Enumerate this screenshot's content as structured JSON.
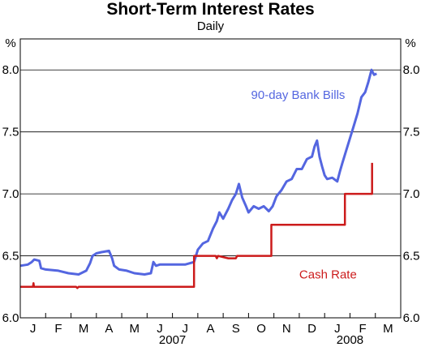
{
  "chart_data": {
    "type": "line",
    "title": "Short-Term Interest Rates",
    "subtitle": "Daily",
    "y_unit_left": "%",
    "y_unit_right": "%",
    "ylim": [
      6.0,
      8.25
    ],
    "y_ticks": [
      "6.0",
      "6.5",
      "7.0",
      "7.5",
      "8.0"
    ],
    "xlim": [
      0,
      15
    ],
    "x_month_labels": [
      "J",
      "F",
      "M",
      "A",
      "M",
      "J",
      "J",
      "A",
      "S",
      "O",
      "N",
      "D",
      "J",
      "F",
      "M"
    ],
    "x_year_labels": [
      {
        "label": "2007",
        "x": 6.0
      },
      {
        "label": "2008",
        "x": 13.0
      }
    ],
    "grid": true,
    "colors": {
      "bank_bills": "#5466e0",
      "cash_rate": "#cc1b1b",
      "grid": "#000000"
    },
    "series": [
      {
        "name": "90-day Bank Bills",
        "label_pos": [
          9.1,
          7.8
        ],
        "points": [
          [
            0.0,
            6.42
          ],
          [
            0.3,
            6.43
          ],
          [
            0.45,
            6.45
          ],
          [
            0.55,
            6.47
          ],
          [
            0.75,
            6.46
          ],
          [
            0.82,
            6.4
          ],
          [
            1.0,
            6.39
          ],
          [
            1.5,
            6.38
          ],
          [
            1.9,
            6.36
          ],
          [
            2.3,
            6.35
          ],
          [
            2.6,
            6.38
          ],
          [
            2.75,
            6.44
          ],
          [
            2.85,
            6.5
          ],
          [
            3.0,
            6.52
          ],
          [
            3.2,
            6.53
          ],
          [
            3.5,
            6.54
          ],
          [
            3.62,
            6.48
          ],
          [
            3.7,
            6.42
          ],
          [
            3.9,
            6.39
          ],
          [
            4.2,
            6.38
          ],
          [
            4.5,
            6.36
          ],
          [
            4.9,
            6.35
          ],
          [
            5.15,
            6.36
          ],
          [
            5.25,
            6.45
          ],
          [
            5.35,
            6.42
          ],
          [
            5.5,
            6.43
          ],
          [
            6.0,
            6.43
          ],
          [
            6.5,
            6.43
          ],
          [
            6.85,
            6.45
          ],
          [
            7.0,
            6.55
          ],
          [
            7.2,
            6.6
          ],
          [
            7.4,
            6.62
          ],
          [
            7.6,
            6.72
          ],
          [
            7.75,
            6.78
          ],
          [
            7.85,
            6.85
          ],
          [
            8.0,
            6.8
          ],
          [
            8.2,
            6.88
          ],
          [
            8.35,
            6.95
          ],
          [
            8.5,
            7.0
          ],
          [
            8.62,
            7.08
          ],
          [
            8.75,
            6.97
          ],
          [
            8.9,
            6.9
          ],
          [
            9.0,
            6.85
          ],
          [
            9.2,
            6.9
          ],
          [
            9.4,
            6.88
          ],
          [
            9.6,
            6.9
          ],
          [
            9.8,
            6.86
          ],
          [
            9.95,
            6.9
          ],
          [
            10.1,
            6.98
          ],
          [
            10.3,
            7.03
          ],
          [
            10.5,
            7.1
          ],
          [
            10.7,
            7.12
          ],
          [
            10.9,
            7.2
          ],
          [
            11.1,
            7.2
          ],
          [
            11.3,
            7.28
          ],
          [
            11.5,
            7.3
          ],
          [
            11.6,
            7.38
          ],
          [
            11.7,
            7.43
          ],
          [
            11.8,
            7.3
          ],
          [
            11.9,
            7.22
          ],
          [
            12.0,
            7.15
          ],
          [
            12.1,
            7.12
          ],
          [
            12.3,
            7.13
          ],
          [
            12.5,
            7.1
          ],
          [
            12.6,
            7.18
          ],
          [
            12.7,
            7.25
          ],
          [
            12.85,
            7.35
          ],
          [
            13.0,
            7.45
          ],
          [
            13.15,
            7.55
          ],
          [
            13.3,
            7.65
          ],
          [
            13.45,
            7.78
          ],
          [
            13.6,
            7.82
          ],
          [
            13.72,
            7.9
          ],
          [
            13.85,
            8.0
          ],
          [
            13.95,
            7.96
          ],
          [
            14.05,
            7.97
          ]
        ]
      },
      {
        "name": "Cash Rate",
        "label_pos": [
          11.0,
          6.35
        ],
        "points": [
          [
            0.0,
            6.25
          ],
          [
            0.5,
            6.25
          ],
          [
            0.52,
            6.28
          ],
          [
            0.54,
            6.25
          ],
          [
            2.2,
            6.25
          ],
          [
            2.25,
            6.24
          ],
          [
            2.3,
            6.25
          ],
          [
            6.85,
            6.25
          ],
          [
            6.85,
            6.5
          ],
          [
            7.7,
            6.5
          ],
          [
            7.75,
            6.48
          ],
          [
            7.8,
            6.5
          ],
          [
            8.2,
            6.48
          ],
          [
            8.5,
            6.48
          ],
          [
            8.55,
            6.5
          ],
          [
            9.9,
            6.5
          ],
          [
            9.9,
            6.75
          ],
          [
            12.8,
            6.75
          ],
          [
            12.8,
            7.0
          ],
          [
            13.87,
            7.0
          ],
          [
            13.87,
            7.25
          ]
        ]
      }
    ]
  }
}
